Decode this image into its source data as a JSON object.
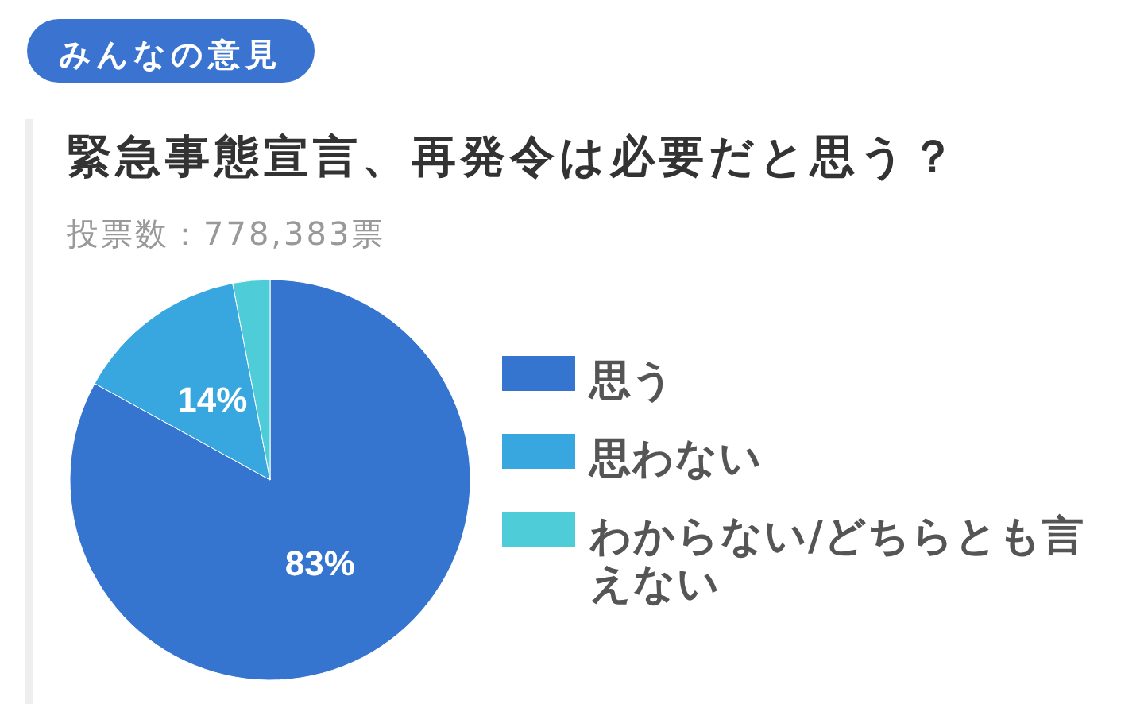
{
  "chart_data": {
    "type": "pie",
    "title": "緊急事態宣言、再発令は必要だと思う？",
    "subtitle": "投票数：778,383票",
    "annotations": [
      "みんなの意見"
    ],
    "categories": [
      "思う",
      "思わない",
      "わからない/どちらとも言えない"
    ],
    "values": [
      83,
      14,
      3
    ],
    "colors": [
      "#3575cf",
      "#38a6df",
      "#4ecdd9"
    ],
    "value_labels": [
      "83%",
      "14%",
      null
    ],
    "legend": "right"
  }
}
